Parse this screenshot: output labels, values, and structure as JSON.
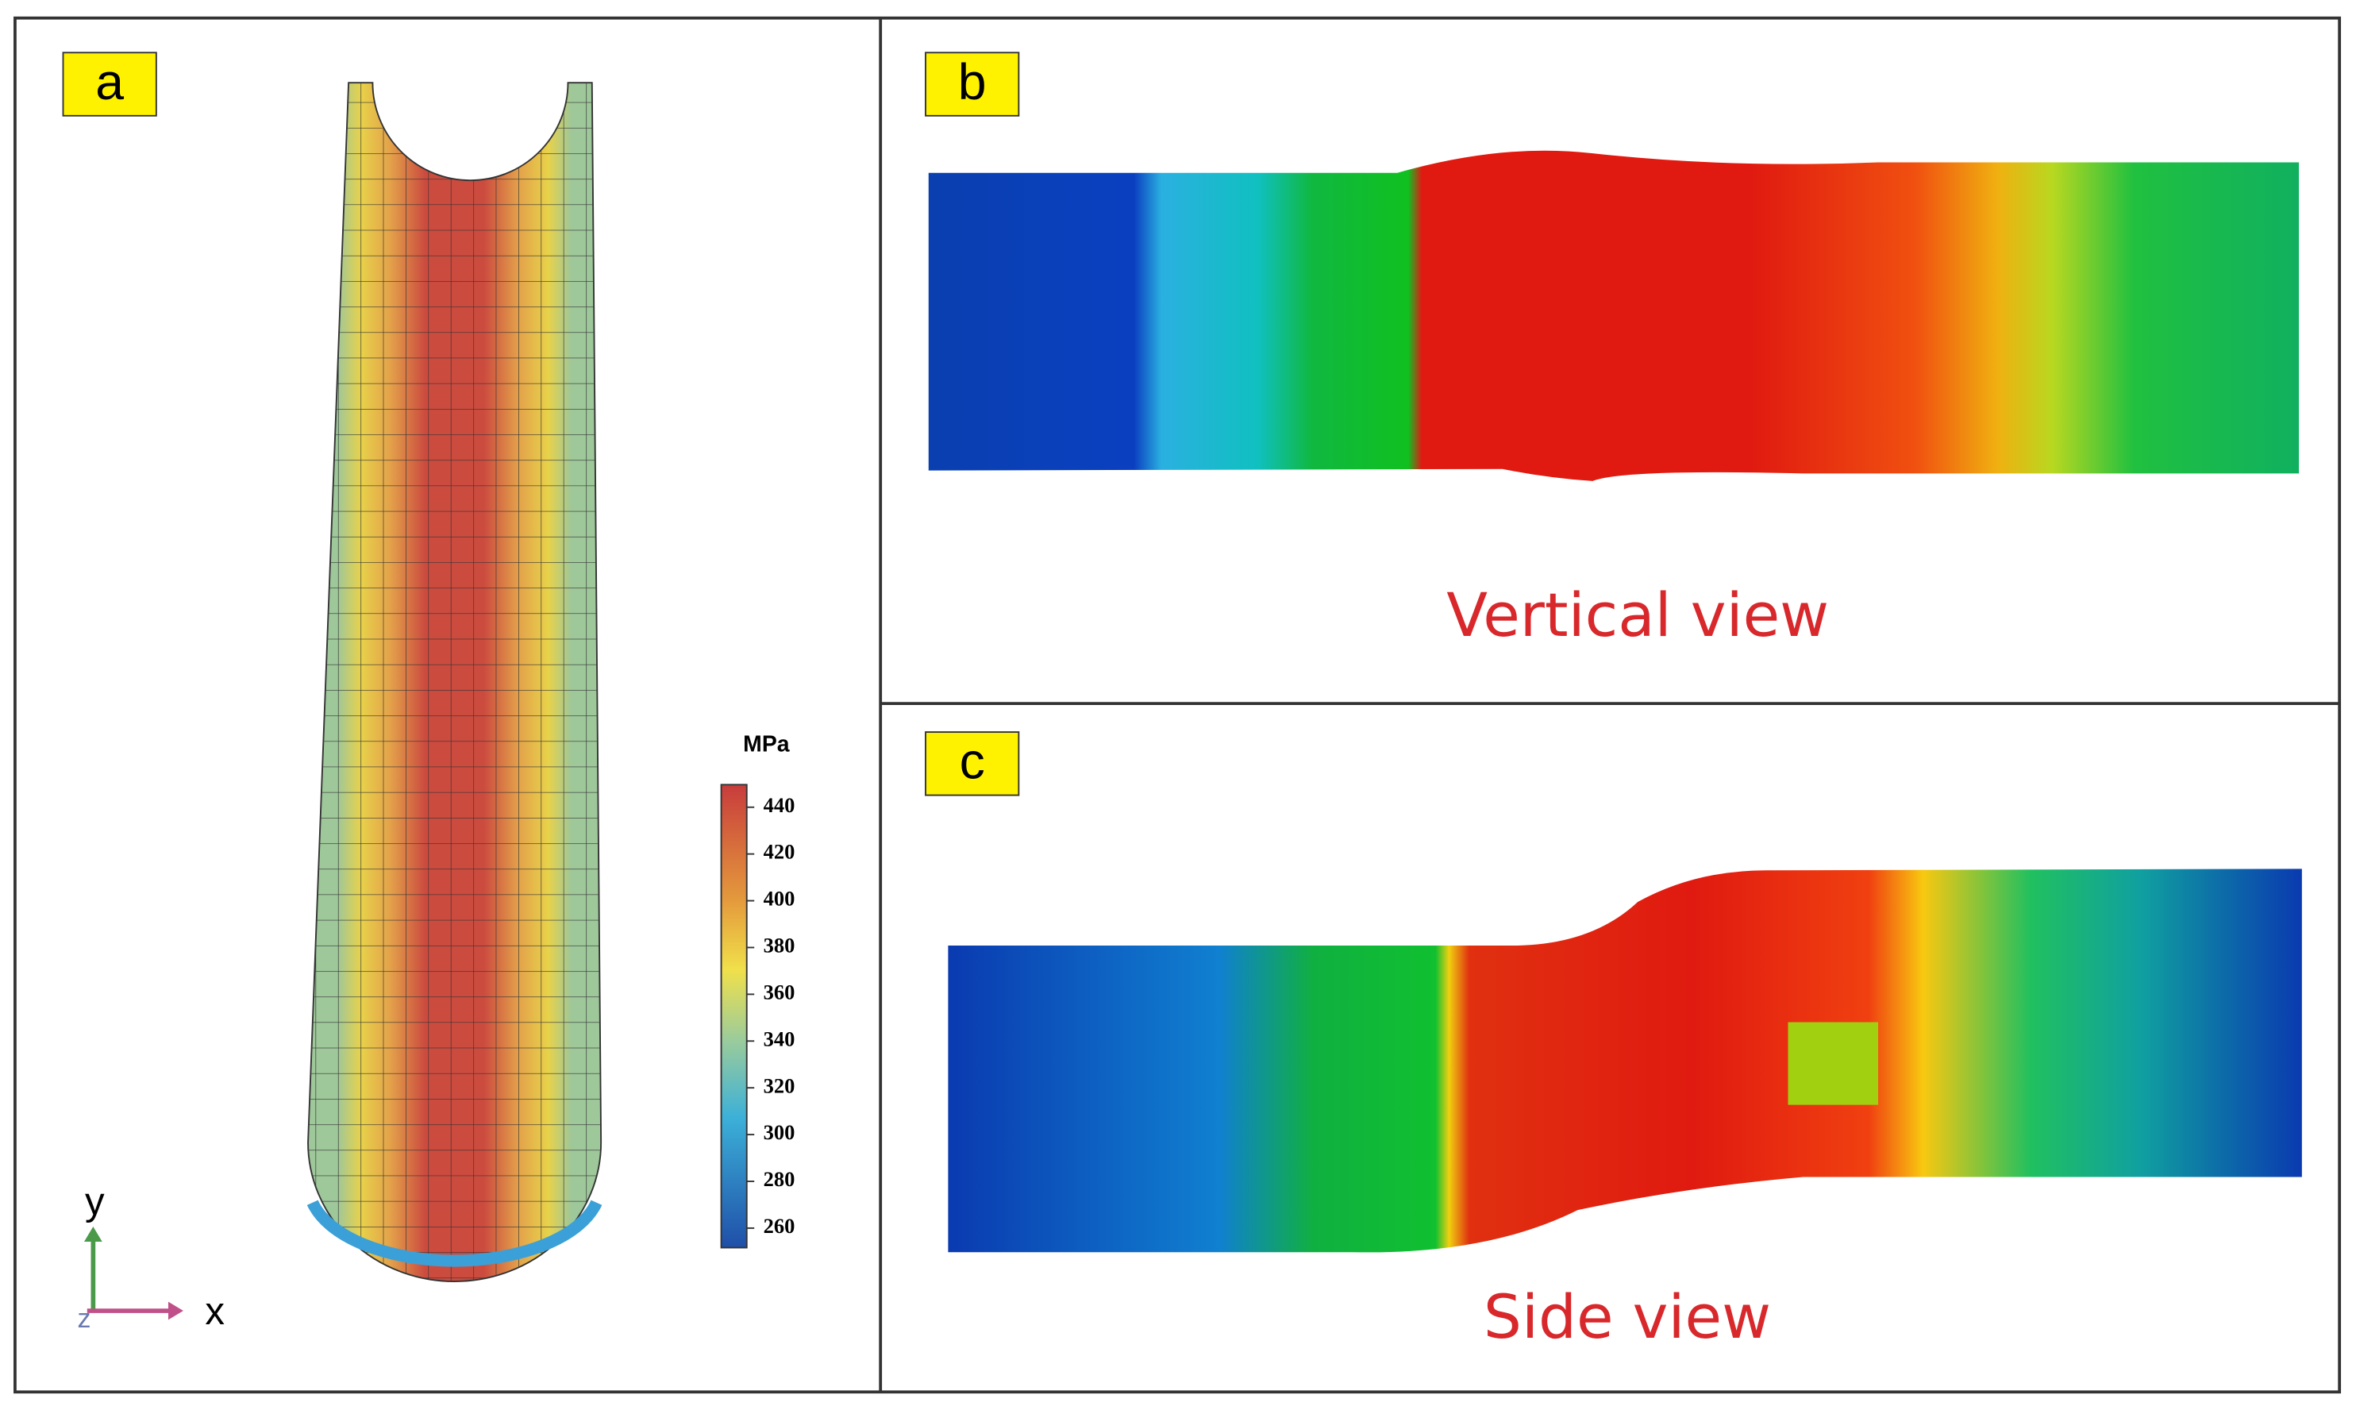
{
  "panels": [
    {
      "label": "a",
      "colorbar": {
        "unit": "MPa",
        "ticks": [
          440,
          420,
          400,
          380,
          360,
          340,
          320,
          300,
          280,
          260
        ]
      },
      "axes": {
        "y": "y",
        "x": "x",
        "z": "z"
      }
    },
    {
      "label": "b",
      "caption": "Vertical view"
    },
    {
      "label": "c",
      "caption": "Side view"
    }
  ]
}
